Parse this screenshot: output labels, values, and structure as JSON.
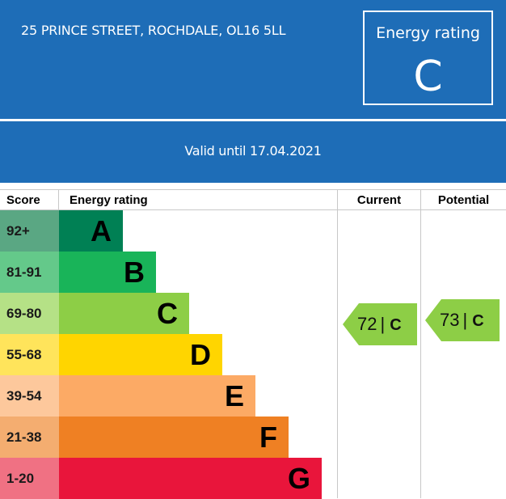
{
  "header": {
    "address": "25 PRINCE STREET, ROCHDALE, OL16 5LL",
    "rating_label": "Energy rating",
    "rating_letter": "C",
    "valid_until": "Valid until 17.04.2021"
  },
  "table": {
    "headers": {
      "score": "Score",
      "energy_rating": "Energy rating",
      "current": "Current",
      "potential": "Potential"
    },
    "bands": [
      {
        "score": "92+",
        "letter": "A",
        "color": "#008054",
        "score_color": "#5aa783"
      },
      {
        "score": "81-91",
        "letter": "B",
        "color": "#19b459",
        "score_color": "#64c98a"
      },
      {
        "score": "69-80",
        "letter": "C",
        "color": "#8dce46",
        "score_color": "#b5e186"
      },
      {
        "score": "55-68",
        "letter": "D",
        "color": "#ffd500",
        "score_color": "#ffe45b"
      },
      {
        "score": "39-54",
        "letter": "E",
        "color": "#fcaa65",
        "score_color": "#fdc89c"
      },
      {
        "score": "21-38",
        "letter": "F",
        "color": "#ef8023",
        "score_color": "#f4ad70"
      },
      {
        "score": "1-20",
        "letter": "G",
        "color": "#e9153b",
        "score_color": "#f07183"
      }
    ],
    "current": {
      "score": "72",
      "separator": "|",
      "letter": "C",
      "color": "#8dce46"
    },
    "potential": {
      "score": "73",
      "separator": "|",
      "letter": "C",
      "color": "#8dce46"
    }
  }
}
